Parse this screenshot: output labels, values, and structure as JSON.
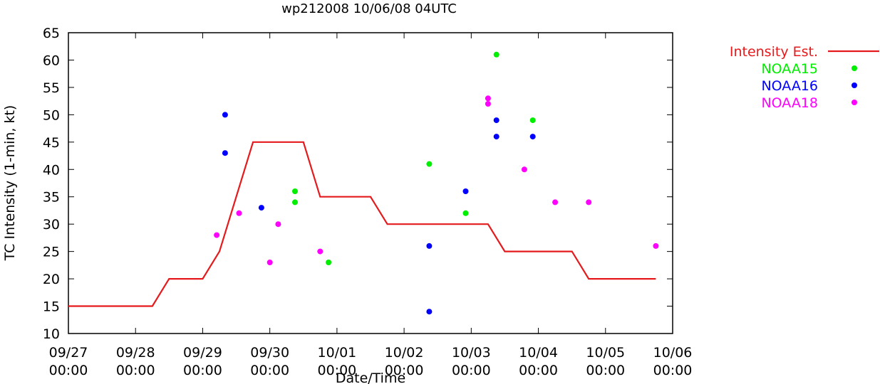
{
  "chart_data": {
    "type": "line",
    "title": "wp212008 10/06/08 04UTC",
    "xlabel": "Date/Time",
    "ylabel": "TC Intensity (1-min, kt)",
    "ylim": [
      10,
      65
    ],
    "y_ticks": [
      10,
      15,
      20,
      25,
      30,
      35,
      40,
      45,
      50,
      55,
      60,
      65
    ],
    "x_ticks": [
      {
        "date": "09/27",
        "time": "00:00"
      },
      {
        "date": "09/28",
        "time": "00:00"
      },
      {
        "date": "09/29",
        "time": "00:00"
      },
      {
        "date": "09/30",
        "time": "00:00"
      },
      {
        "date": "10/01",
        "time": "00:00"
      },
      {
        "date": "10/02",
        "time": "00:00"
      },
      {
        "date": "10/03",
        "time": "00:00"
      },
      {
        "date": "10/04",
        "time": "00:00"
      },
      {
        "date": "10/05",
        "time": "00:00"
      },
      {
        "date": "10/06",
        "time": "00:00"
      }
    ],
    "xlim": [
      "2008-09-27 00:00",
      "2008-10-06 00:00"
    ],
    "grid": false,
    "legend_position": "right",
    "series": [
      {
        "name": "Intensity Est.",
        "kind": "line",
        "color": "#e41a1c",
        "points": [
          [
            "2008-09-27 00:00",
            15
          ],
          [
            "2008-09-28 06:00",
            15
          ],
          [
            "2008-09-28 12:00",
            20
          ],
          [
            "2008-09-29 00:00",
            20
          ],
          [
            "2008-09-29 06:00",
            25
          ],
          [
            "2008-09-29 18:00",
            45
          ],
          [
            "2008-09-30 12:00",
            45
          ],
          [
            "2008-09-30 18:00",
            35
          ],
          [
            "2008-10-01 12:00",
            35
          ],
          [
            "2008-10-01 18:00",
            30
          ],
          [
            "2008-10-03 06:00",
            30
          ],
          [
            "2008-10-03 12:00",
            25
          ],
          [
            "2008-10-04 12:00",
            25
          ],
          [
            "2008-10-04 18:00",
            20
          ],
          [
            "2008-10-05 18:00",
            20
          ]
        ]
      },
      {
        "name": "NOAA15",
        "kind": "scatter",
        "color": "#00ee00",
        "points": [
          [
            "2008-09-30 09:00",
            36
          ],
          [
            "2008-09-30 09:00",
            34
          ],
          [
            "2008-09-30 21:00",
            23
          ],
          [
            "2008-10-02 09:00",
            41
          ],
          [
            "2008-10-02 22:00",
            32
          ],
          [
            "2008-10-03 09:00",
            61
          ],
          [
            "2008-10-03 22:00",
            49
          ]
        ]
      },
      {
        "name": "NOAA16",
        "kind": "scatter",
        "color": "#0000ff",
        "points": [
          [
            "2008-09-29 08:00",
            50
          ],
          [
            "2008-09-29 08:00",
            43
          ],
          [
            "2008-09-29 21:00",
            33
          ],
          [
            "2008-10-02 09:00",
            26
          ],
          [
            "2008-10-02 09:00",
            14
          ],
          [
            "2008-10-02 22:00",
            36
          ],
          [
            "2008-10-03 09:00",
            49
          ],
          [
            "2008-10-03 09:00",
            46
          ],
          [
            "2008-10-03 22:00",
            46
          ]
        ]
      },
      {
        "name": "NOAA18",
        "kind": "scatter",
        "color": "#ff00ff",
        "points": [
          [
            "2008-09-29 05:00",
            28
          ],
          [
            "2008-09-29 13:00",
            32
          ],
          [
            "2008-09-30 00:00",
            23
          ],
          [
            "2008-09-30 03:00",
            30
          ],
          [
            "2008-09-30 18:00",
            25
          ],
          [
            "2008-10-03 06:00",
            53
          ],
          [
            "2008-10-03 06:00",
            52
          ],
          [
            "2008-10-03 19:00",
            40
          ],
          [
            "2008-10-04 06:00",
            34
          ],
          [
            "2008-10-04 18:00",
            34
          ],
          [
            "2008-10-05 18:00",
            26
          ]
        ]
      }
    ]
  }
}
